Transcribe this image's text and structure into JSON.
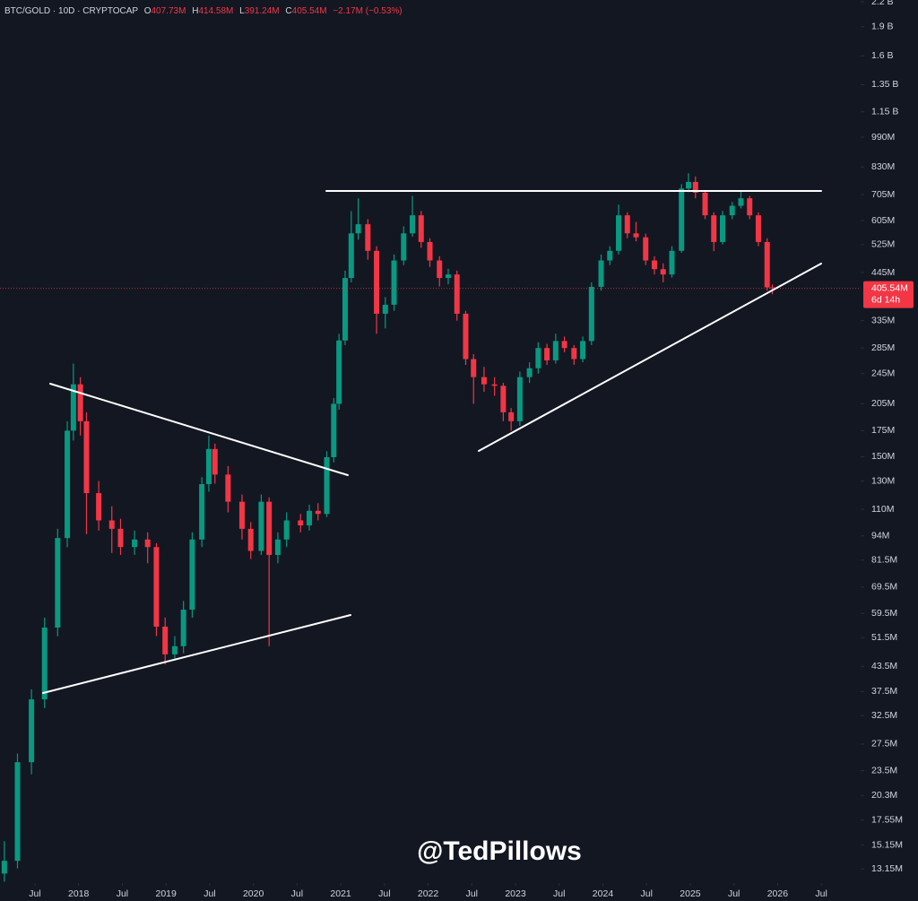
{
  "header": {
    "symbol": "BTC/GOLD · 10D · CRYPTOCAP",
    "open_key": "O",
    "open": "407.73M",
    "high_key": "H",
    "high": "414.58M",
    "low_key": "L",
    "low": "391.24M",
    "close_key": "C",
    "close": "405.54M",
    "change": "−2.17M (−0.53%)"
  },
  "watermark": "@TedPillows",
  "chart_data": {
    "type": "candlestick",
    "log_scale": true,
    "grid": false,
    "up_color": "#089981",
    "down_color": "#f23645",
    "price_label": "405.54M",
    "countdown": "6d 14h",
    "xlim": [
      2017.1,
      2026.95
    ],
    "ylim": [
      12.1,
      2225
    ],
    "xticks": [
      {
        "value": 2017.5,
        "label": "Jul"
      },
      2018,
      {
        "value": 2018.5,
        "label": "Jul"
      },
      2019,
      {
        "value": 2019.5,
        "label": "Jul"
      },
      2020,
      {
        "value": 2020.5,
        "label": "Jul"
      },
      2021,
      {
        "value": 2021.5,
        "label": "Jul"
      },
      2022,
      {
        "value": 2022.5,
        "label": "Jul"
      },
      2023,
      {
        "value": 2023.5,
        "label": "Jul"
      },
      2024,
      {
        "value": 2024.5,
        "label": "Jul"
      },
      2025,
      {
        "value": 2025.5,
        "label": "Jul"
      },
      2026,
      {
        "value": 2026.5,
        "label": "Jul"
      }
    ],
    "yticks": [
      {
        "value": 2200,
        "label": "2.2 B"
      },
      {
        "value": 1900,
        "label": "1.9 B"
      },
      {
        "value": 1600,
        "label": "1.6 B"
      },
      {
        "value": 1350,
        "label": "1.35 B"
      },
      {
        "value": 1150,
        "label": "1.15 B"
      },
      {
        "value": 990,
        "label": "990M"
      },
      {
        "value": 830,
        "label": "830M"
      },
      {
        "value": 705,
        "label": "705M"
      },
      {
        "value": 605,
        "label": "605M"
      },
      {
        "value": 525,
        "label": "525M"
      },
      {
        "value": 445,
        "label": "445M"
      },
      {
        "value": 335,
        "label": "335M"
      },
      {
        "value": 285,
        "label": "285M"
      },
      {
        "value": 245,
        "label": "245M"
      },
      {
        "value": 205,
        "label": "205M"
      },
      {
        "value": 175,
        "label": "175M"
      },
      {
        "value": 150,
        "label": "150M"
      },
      {
        "value": 130,
        "label": "130M"
      },
      {
        "value": 110,
        "label": "110M"
      },
      {
        "value": 94,
        "label": "94M"
      },
      {
        "value": 81.5,
        "label": "81.5M"
      },
      {
        "value": 69.5,
        "label": "69.5M"
      },
      {
        "value": 59.5,
        "label": "59.5M"
      },
      {
        "value": 51.5,
        "label": "51.5M"
      },
      {
        "value": 43.5,
        "label": "43.5M"
      },
      {
        "value": 37.5,
        "label": "37.5M"
      },
      {
        "value": 32.5,
        "label": "32.5M"
      },
      {
        "value": 27.5,
        "label": "27.5M"
      },
      {
        "value": 23.5,
        "label": "23.5M"
      },
      {
        "value": 20.3,
        "label": "20.3M"
      },
      {
        "value": 17.55,
        "label": "17.55M"
      },
      {
        "value": 15.15,
        "label": "15.15M"
      },
      {
        "value": 13.15,
        "label": "13.15M"
      }
    ],
    "candles": {
      "x": [
        2017.15,
        2017.3,
        2017.46,
        2017.61,
        2017.76,
        2017.87,
        2017.94,
        2018.02,
        2018.09,
        2018.23,
        2018.38,
        2018.48,
        2018.64,
        2018.79,
        2018.89,
        2018.99,
        2019.1,
        2019.2,
        2019.3,
        2019.41,
        2019.49,
        2019.56,
        2019.71,
        2019.87,
        2019.97,
        2020.09,
        2020.18,
        2020.28,
        2020.38,
        2020.54,
        2020.64,
        2020.74,
        2020.84,
        2020.92,
        2020.98,
        2021.05,
        2021.12,
        2021.2,
        2021.31,
        2021.41,
        2021.51,
        2021.61,
        2021.72,
        2021.82,
        2021.92,
        2022.02,
        2022.13,
        2022.23,
        2022.33,
        2022.43,
        2022.52,
        2022.64,
        2022.76,
        2022.86,
        2022.95,
        2023.05,
        2023.16,
        2023.26,
        2023.36,
        2023.46,
        2023.56,
        2023.67,
        2023.77,
        2023.87,
        2023.98,
        2024.08,
        2024.18,
        2024.28,
        2024.38,
        2024.49,
        2024.59,
        2024.69,
        2024.79,
        2024.9,
        2024.98,
        2025.06,
        2025.17,
        2025.27,
        2025.37,
        2025.48,
        2025.58,
        2025.68,
        2025.78,
        2025.88,
        2025.94
      ],
      "open": [
        12.8,
        13.8,
        24.7,
        35.8,
        54.7,
        92.8,
        175,
        230,
        185,
        121,
        103,
        98,
        88,
        92,
        88,
        55,
        46.7,
        49,
        60.8,
        92,
        127.6,
        157,
        135,
        115,
        98,
        86,
        115,
        84,
        92,
        103,
        100,
        109,
        107,
        149.6,
        205,
        298,
        431,
        561,
        592,
        506,
        349,
        368,
        478,
        561,
        624,
        533,
        478,
        431,
        440,
        349,
        267,
        240,
        230,
        228,
        195,
        185,
        240,
        253,
        285,
        265,
        297,
        285,
        267,
        297,
        409,
        478,
        506,
        624,
        561,
        548,
        478,
        454,
        440,
        506,
        731,
        760,
        713,
        624,
        533,
        624,
        660,
        690,
        624,
        533,
        407.73
      ],
      "high": [
        15.5,
        26,
        38,
        58,
        98,
        185,
        260,
        240,
        195,
        130,
        112,
        104,
        97,
        96,
        90,
        58,
        52,
        64,
        96,
        133,
        170,
        162,
        142,
        120,
        102,
        120,
        118,
        96,
        108,
        107,
        113,
        114,
        155,
        212,
        310,
        450,
        640,
        690,
        610,
        520,
        385,
        495,
        585,
        700,
        640,
        545,
        490,
        455,
        450,
        355,
        275,
        255,
        240,
        232,
        200,
        248,
        262,
        295,
        292,
        310,
        305,
        290,
        305,
        420,
        495,
        520,
        665,
        635,
        600,
        560,
        490,
        470,
        520,
        750,
        800,
        785,
        720,
        635,
        640,
        675,
        720,
        700,
        635,
        545,
        414.58
      ],
      "low": [
        12.2,
        13.2,
        23,
        34,
        52,
        88,
        165,
        170,
        95,
        97,
        85,
        84,
        84,
        80,
        52,
        44,
        45,
        47,
        58,
        88,
        122,
        128,
        108,
        92,
        82,
        84,
        49,
        80,
        88,
        96,
        97,
        103,
        105,
        145,
        198,
        290,
        420,
        540,
        480,
        310,
        320,
        355,
        465,
        550,
        515,
        460,
        410,
        415,
        335,
        258,
        205,
        220,
        215,
        185,
        175,
        180,
        232,
        245,
        258,
        260,
        278,
        258,
        262,
        290,
        400,
        465,
        495,
        545,
        535,
        465,
        440,
        420,
        432,
        500,
        715,
        690,
        610,
        505,
        525,
        610,
        650,
        610,
        520,
        400,
        391.24
      ],
      "close": [
        13.8,
        24.7,
        35.8,
        54.7,
        92.8,
        175,
        230,
        185,
        121,
        103,
        98,
        88,
        92,
        88,
        55,
        46.7,
        49,
        60.8,
        92,
        127.6,
        157,
        135,
        115,
        98,
        86,
        115,
        84,
        92,
        103,
        100,
        109,
        107,
        149.6,
        205,
        298,
        431,
        561,
        592,
        506,
        349,
        368,
        478,
        561,
        624,
        533,
        478,
        431,
        440,
        349,
        267,
        240,
        230,
        228,
        195,
        185,
        240,
        253,
        285,
        265,
        297,
        285,
        267,
        297,
        409,
        478,
        506,
        624,
        561,
        548,
        478,
        454,
        440,
        506,
        731,
        760,
        713,
        624,
        533,
        624,
        660,
        690,
        624,
        533,
        407.73,
        405.54
      ]
    }
  }
}
